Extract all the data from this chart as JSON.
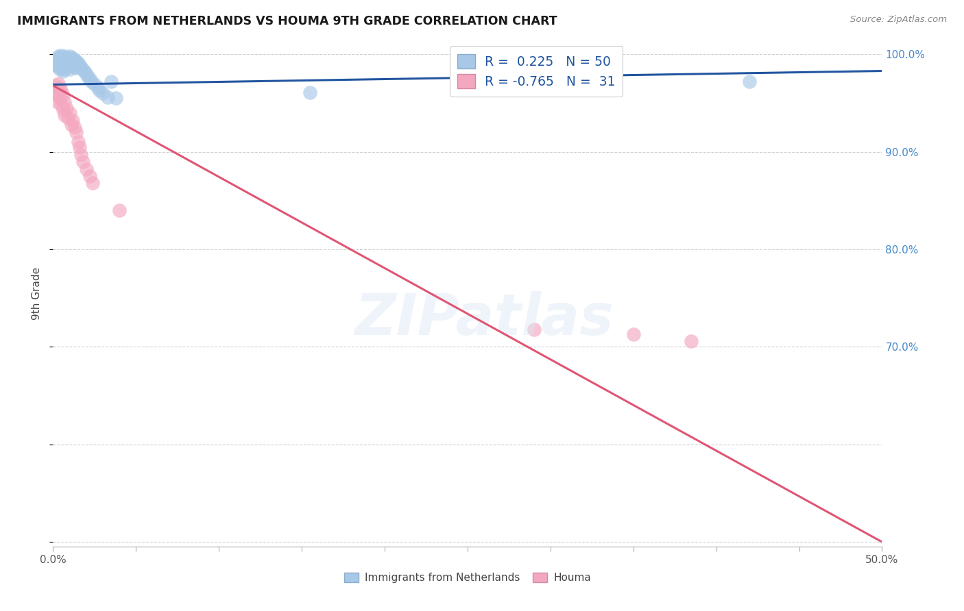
{
  "title": "IMMIGRANTS FROM NETHERLANDS VS HOUMA 9TH GRADE CORRELATION CHART",
  "source": "Source: ZipAtlas.com",
  "ylabel": "9th Grade",
  "xlim": [
    0.0,
    0.5
  ],
  "ylim": [
    0.495,
    1.015
  ],
  "blue_R": 0.225,
  "blue_N": 50,
  "pink_R": -0.765,
  "pink_N": 31,
  "blue_color": "#a8c8e8",
  "pink_color": "#f4a8c0",
  "blue_line_color": "#2255a0",
  "pink_line_color": "#e05575",
  "blue_scatter_x": [
    0.001,
    0.002,
    0.002,
    0.003,
    0.003,
    0.004,
    0.004,
    0.004,
    0.005,
    0.005,
    0.005,
    0.006,
    0.006,
    0.006,
    0.007,
    0.007,
    0.007,
    0.008,
    0.008,
    0.009,
    0.009,
    0.01,
    0.01,
    0.01,
    0.011,
    0.011,
    0.012,
    0.012,
    0.013,
    0.013,
    0.014,
    0.014,
    0.015,
    0.016,
    0.017,
    0.018,
    0.019,
    0.02,
    0.021,
    0.022,
    0.023,
    0.025,
    0.027,
    0.028,
    0.03,
    0.033,
    0.035,
    0.038,
    0.155,
    0.42
  ],
  "blue_scatter_y": [
    0.99,
    0.995,
    0.988,
    0.998,
    0.991,
    0.997,
    0.992,
    0.985,
    0.999,
    0.993,
    0.986,
    0.997,
    0.99,
    0.983,
    0.998,
    0.992,
    0.985,
    0.996,
    0.989,
    0.997,
    0.991,
    0.998,
    0.992,
    0.985,
    0.997,
    0.99,
    0.996,
    0.988,
    0.994,
    0.987,
    0.993,
    0.986,
    0.991,
    0.989,
    0.987,
    0.984,
    0.983,
    0.98,
    0.977,
    0.975,
    0.972,
    0.969,
    0.966,
    0.963,
    0.96,
    0.956,
    0.972,
    0.955,
    0.961,
    0.972
  ],
  "pink_scatter_x": [
    0.001,
    0.002,
    0.002,
    0.003,
    0.003,
    0.004,
    0.004,
    0.005,
    0.005,
    0.006,
    0.006,
    0.007,
    0.007,
    0.008,
    0.009,
    0.01,
    0.011,
    0.012,
    0.013,
    0.014,
    0.015,
    0.016,
    0.017,
    0.018,
    0.02,
    0.022,
    0.024,
    0.04,
    0.29,
    0.35,
    0.385
  ],
  "pink_scatter_y": [
    0.96,
    0.968,
    0.952,
    0.97,
    0.958,
    0.965,
    0.955,
    0.963,
    0.948,
    0.958,
    0.943,
    0.951,
    0.938,
    0.945,
    0.935,
    0.94,
    0.928,
    0.932,
    0.925,
    0.92,
    0.91,
    0.905,
    0.897,
    0.89,
    0.882,
    0.875,
    0.868,
    0.84,
    0.718,
    0.713,
    0.706
  ],
  "blue_trend_x": [
    0.0,
    0.5
  ],
  "blue_trend_y": [
    0.969,
    0.983
  ],
  "pink_trend_x": [
    0.0,
    0.5
  ],
  "pink_trend_y": [
    0.968,
    0.5
  ],
  "background_color": "#ffffff",
  "grid_color": "#cccccc"
}
